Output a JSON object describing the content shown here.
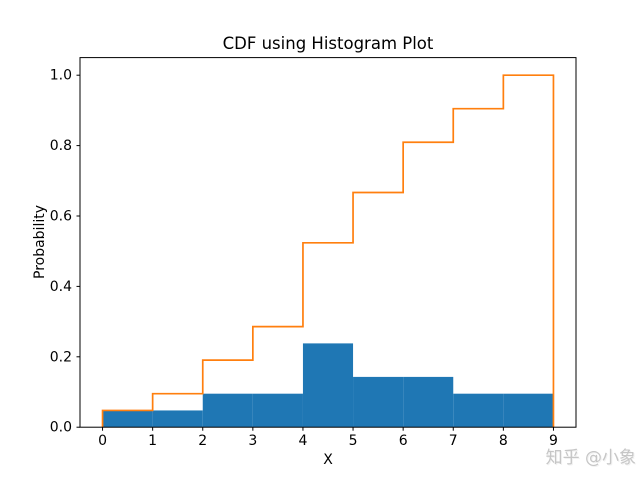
{
  "figure": {
    "title": "CDF using Histogram Plot",
    "xlabel": "X",
    "ylabel": "Probability"
  },
  "watermark": "知乎 @小象",
  "chart_data": {
    "type": "bar",
    "subtype": "histogram-pdf-with-cdf-step",
    "title": "CDF using Histogram Plot",
    "xlabel": "X",
    "ylabel": "Probability",
    "bin_edges": [
      0,
      1,
      2,
      3,
      4,
      5,
      6,
      7,
      8,
      9
    ],
    "series": [
      {
        "name": "PDF histogram (filled bars)",
        "style": "bar",
        "values": [
          0.0476,
          0.0476,
          0.0952,
          0.0952,
          0.2381,
          0.1429,
          0.1429,
          0.0952,
          0.0952
        ]
      },
      {
        "name": "CDF histogram (step outline)",
        "style": "step",
        "values": [
          0.0476,
          0.0952,
          0.1905,
          0.2857,
          0.5238,
          0.6667,
          0.8095,
          0.9048,
          1.0
        ]
      }
    ],
    "colors": {
      "pdf": "#1f77b4",
      "cdf": "#ff7f0e",
      "spine": "#000000",
      "text": "#000000"
    },
    "xlim": [
      -0.45,
      9.45
    ],
    "ylim": [
      0,
      1.05
    ],
    "xticks": [
      0,
      1,
      2,
      3,
      4,
      5,
      6,
      7,
      8,
      9
    ],
    "xtick_labels": [
      "0",
      "1",
      "2",
      "3",
      "4",
      "5",
      "6",
      "7",
      "8",
      "9"
    ],
    "yticks": [
      0.0,
      0.2,
      0.4,
      0.6,
      0.8,
      1.0
    ],
    "ytick_labels": [
      "0.0",
      "0.2",
      "0.4",
      "0.6",
      "0.8",
      "1.0"
    ],
    "grid": false,
    "legend": "none"
  }
}
